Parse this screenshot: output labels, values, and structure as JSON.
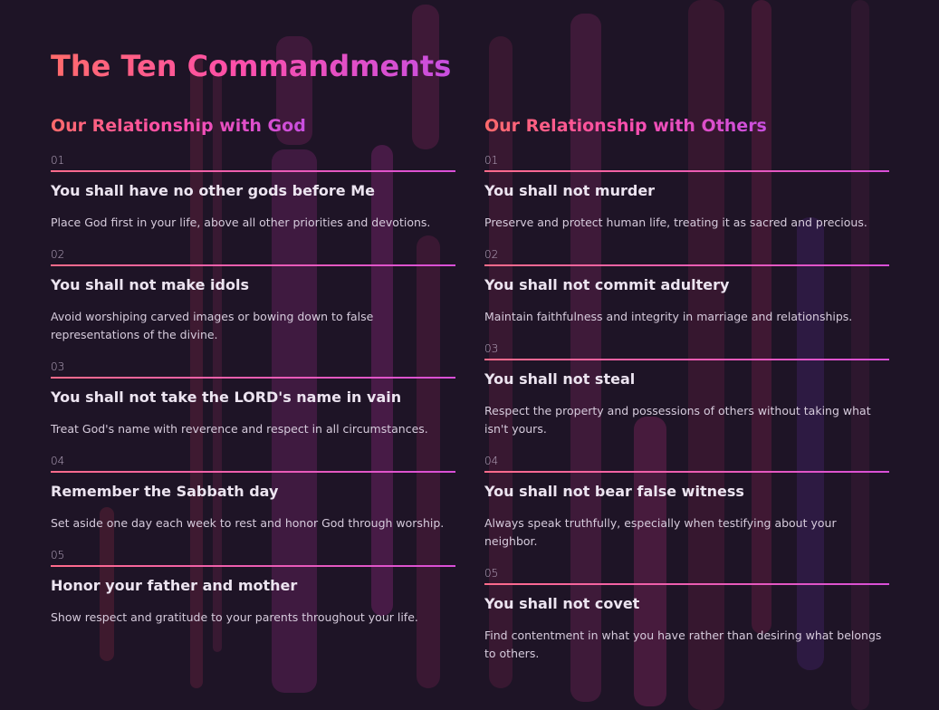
{
  "title": "The Ten Commandments",
  "colors": {
    "background": "#1e1426",
    "gradient_start": "#ff6b6b",
    "gradient_end": "#c84fe0",
    "heading_text": "#ece4f0"
  },
  "columns": [
    {
      "heading": "Our Relationship with God",
      "items": [
        {
          "number": "01",
          "title": "You shall have no other gods before Me",
          "description": "Place God first in your life, above all other priorities and devotions."
        },
        {
          "number": "02",
          "title": "You shall not make idols",
          "description": "Avoid worshiping carved images or bowing down to false representations of the divine."
        },
        {
          "number": "03",
          "title": "You shall not take the LORD's name in vain",
          "description": "Treat God's name with reverence and respect in all circumstances."
        },
        {
          "number": "04",
          "title": "Remember the Sabbath day",
          "description": "Set aside one day each week to rest and honor God through worship."
        },
        {
          "number": "05",
          "title": "Honor your father and mother",
          "description": "Show respect and gratitude to your parents throughout your life."
        }
      ]
    },
    {
      "heading": "Our Relationship with Others",
      "items": [
        {
          "number": "01",
          "title": "You shall not murder",
          "description": "Preserve and protect human life, treating it as sacred and precious."
        },
        {
          "number": "02",
          "title": "You shall not commit adultery",
          "description": "Maintain faithfulness and integrity in marriage and relationships."
        },
        {
          "number": "03",
          "title": "You shall not steal",
          "description": "Respect the property and possessions of others without taking what isn't yours."
        },
        {
          "number": "04",
          "title": "You shall not bear false witness",
          "description": "Always speak truthfully, especially when testifying about your neighbor."
        },
        {
          "number": "05",
          "title": "You shall not covet",
          "description": "Find contentment in what you have rather than desiring what belongs to others."
        }
      ]
    }
  ]
}
